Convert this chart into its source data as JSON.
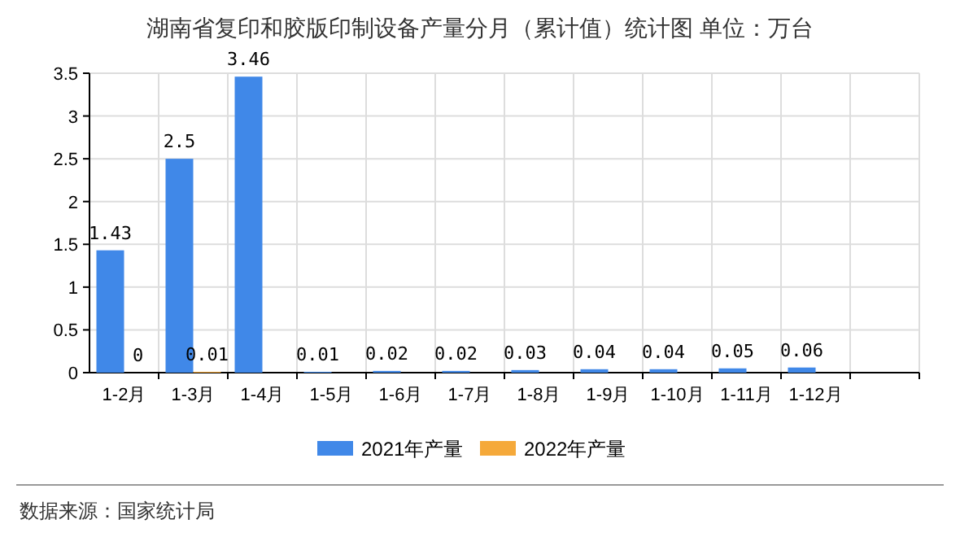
{
  "chart_data": {
    "type": "bar",
    "title": "湖南省复印和胶版印制设备产量分月（累计值）统计图 单位：万台",
    "categories": [
      "1-2月",
      "1-3月",
      "1-4月",
      "1-5月",
      "1-6月",
      "1-7月",
      "1-8月",
      "1-9月",
      "1-10月",
      "1-11月",
      "1-12月",
      null
    ],
    "series": [
      {
        "name": "2021年产量",
        "color": "#4088e8",
        "values": [
          1.43,
          2.5,
          3.46,
          0.01,
          0.02,
          0.02,
          0.03,
          0.04,
          0.04,
          0.05,
          0.06,
          null
        ]
      },
      {
        "name": "2022年产量",
        "color": "#f5a93a",
        "values": [
          0,
          0.01,
          null,
          null,
          null,
          null,
          null,
          null,
          null,
          null,
          null,
          null
        ]
      }
    ],
    "ylim": [
      0,
      3.5
    ],
    "yticks": [
      0,
      0.5,
      1,
      1.5,
      2,
      2.5,
      3,
      3.5
    ],
    "grid": true,
    "legend": "bottom",
    "data_labels": true,
    "annotations": [
      "数据来源：国家统计局"
    ]
  }
}
